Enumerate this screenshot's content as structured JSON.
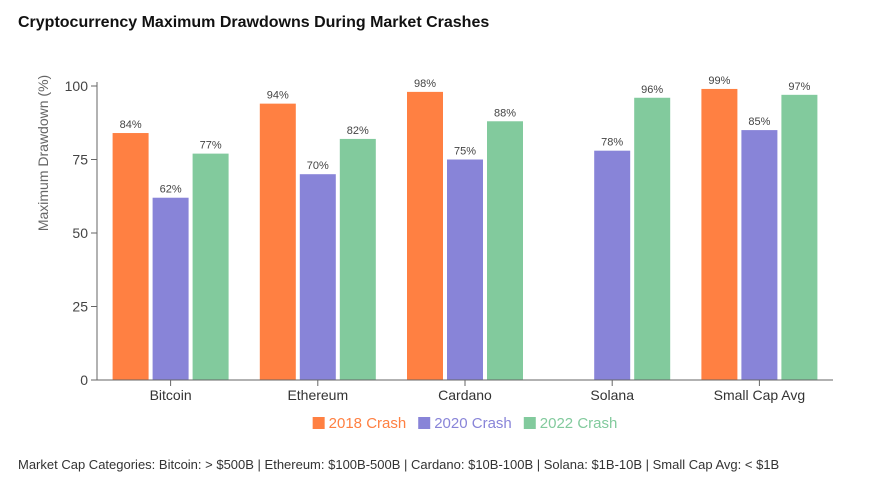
{
  "chart_data": {
    "type": "bar",
    "title": "Cryptocurrency Maximum Drawdowns During Market Crashes",
    "ylabel": "Maximum Drawdown (%)",
    "xlabel": "",
    "ylim": [
      0,
      100
    ],
    "yticks": [
      0,
      25,
      50,
      75,
      100
    ],
    "categories": [
      "Bitcoin",
      "Ethereum",
      "Cardano",
      "Solana",
      "Small Cap Avg"
    ],
    "series": [
      {
        "name": "2018 Crash",
        "color": "#ff8042",
        "values": [
          84,
          94,
          98,
          null,
          99
        ]
      },
      {
        "name": "2020 Crash",
        "color": "#8884d8",
        "values": [
          62,
          70,
          75,
          78,
          85
        ]
      },
      {
        "name": "2022 Crash",
        "color": "#82ca9d",
        "values": [
          77,
          82,
          88,
          96,
          97
        ]
      }
    ],
    "legend": "bottom",
    "value_suffix": "%"
  },
  "footnote": "Market Cap Categories: Bitcoin: > $500B | Ethereum: $100B-500B | Cardano: $10B-100B | Solana: $1B-10B | Small Cap Avg: < $1B"
}
